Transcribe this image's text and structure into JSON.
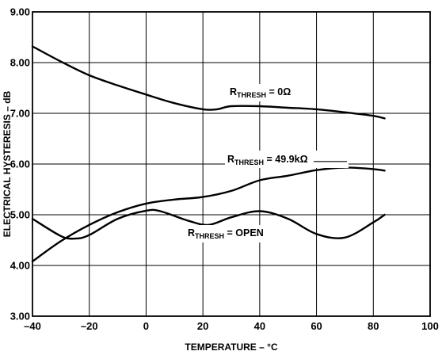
{
  "chart_data": {
    "type": "line",
    "title": "",
    "xlabel": "TEMPERATURE – °C",
    "ylabel": "ELECTRICAL HYSTERESIS – dB",
    "xlim": [
      -40,
      100
    ],
    "ylim": [
      3.0,
      9.0
    ],
    "grid": true,
    "x_ticks": [
      "–40",
      "–20",
      "0",
      "20",
      "40",
      "60",
      "80",
      "100"
    ],
    "y_ticks": [
      "3.00",
      "4.00",
      "5.00",
      "6.00",
      "7.00",
      "8.00",
      "9.00"
    ],
    "series": [
      {
        "label_main": "R",
        "label_sub": "THRESH",
        "label_rest": " = 0Ω",
        "x": [
          -40,
          -30,
          -20,
          -10,
          0,
          10,
          20,
          25,
          30,
          40,
          50,
          60,
          70,
          80,
          84
        ],
        "y": [
          8.32,
          8.02,
          7.75,
          7.55,
          7.37,
          7.2,
          7.08,
          7.08,
          7.14,
          7.14,
          7.11,
          7.08,
          7.02,
          6.95,
          6.9
        ]
      },
      {
        "label_main": "R",
        "label_sub": "THRESH",
        "label_rest": " = 49.9kΩ",
        "x": [
          -40,
          -30,
          -20,
          -10,
          0,
          10,
          20,
          30,
          40,
          50,
          60,
          70,
          80,
          84
        ],
        "y": [
          4.08,
          4.48,
          4.8,
          5.05,
          5.22,
          5.3,
          5.35,
          5.47,
          5.68,
          5.77,
          5.88,
          5.93,
          5.9,
          5.87
        ]
      },
      {
        "label_main": "R",
        "label_sub": "THRESH",
        "label_rest": " = OPEN",
        "x": [
          -40,
          -30,
          -25,
          -20,
          -10,
          0,
          5,
          15,
          22,
          30,
          40,
          50,
          60,
          70,
          80,
          84
        ],
        "y": [
          4.92,
          4.58,
          4.53,
          4.6,
          4.92,
          5.08,
          5.07,
          4.88,
          4.8,
          4.95,
          5.07,
          4.92,
          4.62,
          4.55,
          4.85,
          5.0
        ]
      }
    ]
  }
}
